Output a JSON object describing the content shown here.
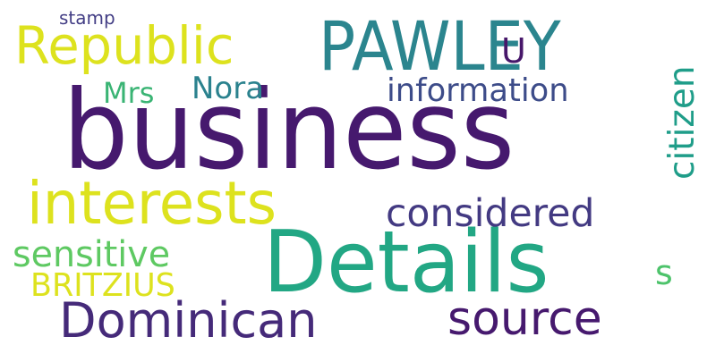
{
  "words": [
    {
      "text": "business",
      "color": "#46196e"
    },
    {
      "text": "PAWLEY",
      "color": "#2b858e"
    },
    {
      "text": "Details",
      "color": "#22a784"
    },
    {
      "text": "interests",
      "color": "#dde21e"
    },
    {
      "text": "Republic",
      "color": "#dde21e"
    },
    {
      "text": "Dominican",
      "color": "#452a79"
    },
    {
      "text": "source",
      "color": "#46196e"
    },
    {
      "text": "considered",
      "color": "#433a82"
    },
    {
      "text": "information",
      "color": "#3d4c89"
    },
    {
      "text": "citizen",
      "color": "#1f9d89"
    },
    {
      "text": "sensitive",
      "color": "#5ec962"
    },
    {
      "text": "BRITZIUS",
      "color": "#dde21e"
    },
    {
      "text": "Nora",
      "color": "#2b828e"
    },
    {
      "text": "Mrs",
      "color": "#3ab474"
    },
    {
      "text": "U",
      "color": "#47176a"
    },
    {
      "text": "s",
      "color": "#4dc36b"
    },
    {
      "text": "stamp",
      "color": "#433e85"
    }
  ]
}
